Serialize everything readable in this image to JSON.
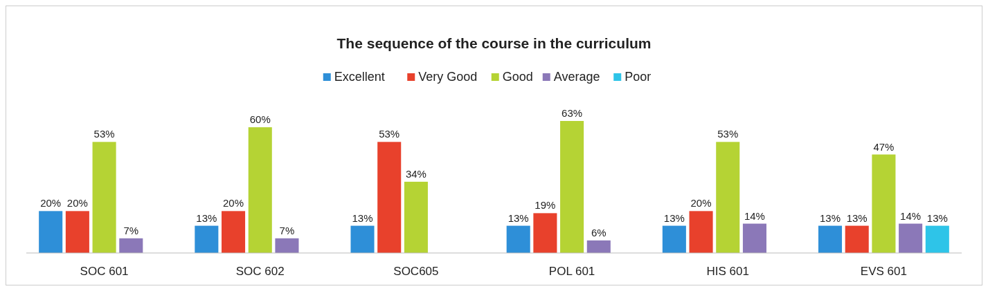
{
  "chart_data": {
    "type": "bar",
    "title": "The sequence of the course in the curriculum",
    "legend": "top",
    "categories": [
      "SOC 601",
      "SOC 602",
      "SOC605",
      "POL 601",
      "HIS 601",
      "EVS 601"
    ],
    "series": [
      {
        "name": "Excellent",
        "color": "#2e8fd8",
        "values": [
          20,
          13,
          13,
          13,
          13,
          13
        ],
        "value_labels": [
          "20%",
          "13%",
          "13%",
          "13%",
          "13%",
          "13%"
        ]
      },
      {
        "name": "Very Good",
        "color": "#e8412c",
        "values": [
          20,
          20,
          53,
          19,
          20,
          13
        ],
        "value_labels": [
          "20%",
          "20%",
          "53%",
          "19%",
          "20%",
          "13%"
        ]
      },
      {
        "name": "Good",
        "color": "#b5d334",
        "values": [
          53,
          60,
          34,
          63,
          53,
          47
        ],
        "value_labels": [
          "53%",
          "60%",
          "34%",
          "63%",
          "53%",
          "47%"
        ]
      },
      {
        "name": "Average",
        "color": "#8b78b8",
        "values": [
          7,
          7,
          null,
          6,
          14,
          14
        ],
        "value_labels": [
          "7%",
          "7%",
          null,
          "6%",
          "14%",
          "14%"
        ]
      },
      {
        "name": "Poor",
        "color": "#2ec4e8",
        "values": [
          null,
          null,
          null,
          null,
          null,
          13
        ],
        "value_labels": [
          null,
          null,
          null,
          null,
          null,
          "13%"
        ]
      }
    ]
  }
}
